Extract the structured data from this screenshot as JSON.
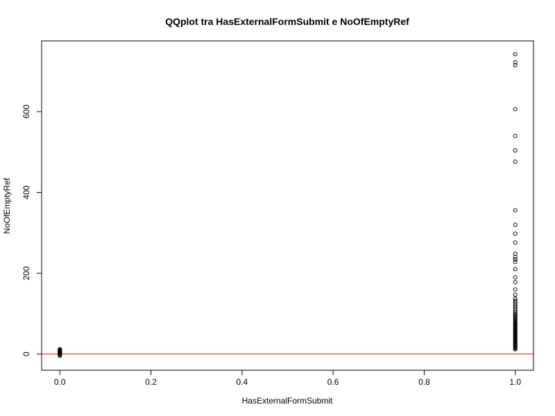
{
  "chart_data": {
    "type": "scatter",
    "title": "QQplot tra HasExternalFormSubmit e NoOfEmptyRef",
    "xlabel": "HasExternalFormSubmit",
    "ylabel": "NoOfEmptyRef",
    "xlim": [
      -0.04,
      1.04
    ],
    "ylim": [
      -40,
      775
    ],
    "xticks": [
      0.0,
      0.2,
      0.4,
      0.6,
      0.8,
      1.0
    ],
    "xtick_labels": [
      "0.0",
      "0.2",
      "0.4",
      "0.6",
      "0.8",
      "1.0"
    ],
    "yticks": [
      0,
      200,
      400,
      600
    ],
    "ytick_labels": [
      "0",
      "200",
      "400",
      "600"
    ],
    "grid": false,
    "reference_line": {
      "type": "horizontal",
      "y": 0,
      "color": "#ff0000"
    },
    "marker": "open-circle",
    "series": [
      {
        "points": [
          {
            "x": 0,
            "y": -4
          },
          {
            "x": 0,
            "y": -2
          },
          {
            "x": 0,
            "y": 0
          },
          {
            "x": 0,
            "y": 1
          },
          {
            "x": 0,
            "y": 2
          },
          {
            "x": 0,
            "y": 3
          },
          {
            "x": 0,
            "y": 4
          },
          {
            "x": 0,
            "y": 5
          },
          {
            "x": 0,
            "y": 6
          },
          {
            "x": 0,
            "y": 7
          },
          {
            "x": 0,
            "y": 8
          },
          {
            "x": 0,
            "y": 9
          },
          {
            "x": 0,
            "y": 10
          },
          {
            "x": 0,
            "y": 11
          },
          {
            "x": 0,
            "y": 12
          },
          {
            "x": 1,
            "y": 12
          },
          {
            "x": 1,
            "y": 14
          },
          {
            "x": 1,
            "y": 16
          },
          {
            "x": 1,
            "y": 18
          },
          {
            "x": 1,
            "y": 20
          },
          {
            "x": 1,
            "y": 22
          },
          {
            "x": 1,
            "y": 24
          },
          {
            "x": 1,
            "y": 26
          },
          {
            "x": 1,
            "y": 28
          },
          {
            "x": 1,
            "y": 30
          },
          {
            "x": 1,
            "y": 32
          },
          {
            "x": 1,
            "y": 34
          },
          {
            "x": 1,
            "y": 36
          },
          {
            "x": 1,
            "y": 38
          },
          {
            "x": 1,
            "y": 40
          },
          {
            "x": 1,
            "y": 42
          },
          {
            "x": 1,
            "y": 44
          },
          {
            "x": 1,
            "y": 46
          },
          {
            "x": 1,
            "y": 48
          },
          {
            "x": 1,
            "y": 50
          },
          {
            "x": 1,
            "y": 52
          },
          {
            "x": 1,
            "y": 54
          },
          {
            "x": 1,
            "y": 56
          },
          {
            "x": 1,
            "y": 58
          },
          {
            "x": 1,
            "y": 60
          },
          {
            "x": 1,
            "y": 62
          },
          {
            "x": 1,
            "y": 64
          },
          {
            "x": 1,
            "y": 66
          },
          {
            "x": 1,
            "y": 68
          },
          {
            "x": 1,
            "y": 70
          },
          {
            "x": 1,
            "y": 72
          },
          {
            "x": 1,
            "y": 74
          },
          {
            "x": 1,
            "y": 76
          },
          {
            "x": 1,
            "y": 78
          },
          {
            "x": 1,
            "y": 80
          },
          {
            "x": 1,
            "y": 82
          },
          {
            "x": 1,
            "y": 85
          },
          {
            "x": 1,
            "y": 88
          },
          {
            "x": 1,
            "y": 91
          },
          {
            "x": 1,
            "y": 94
          },
          {
            "x": 1,
            "y": 97
          },
          {
            "x": 1,
            "y": 100
          },
          {
            "x": 1,
            "y": 104
          },
          {
            "x": 1,
            "y": 108
          },
          {
            "x": 1,
            "y": 112
          },
          {
            "x": 1,
            "y": 116
          },
          {
            "x": 1,
            "y": 120
          },
          {
            "x": 1,
            "y": 124
          },
          {
            "x": 1,
            "y": 128
          },
          {
            "x": 1,
            "y": 132
          },
          {
            "x": 1,
            "y": 137
          },
          {
            "x": 1,
            "y": 147
          },
          {
            "x": 1,
            "y": 160
          },
          {
            "x": 1,
            "y": 178
          },
          {
            "x": 1,
            "y": 190
          },
          {
            "x": 1,
            "y": 210
          },
          {
            "x": 1,
            "y": 228
          },
          {
            "x": 1,
            "y": 234
          },
          {
            "x": 1,
            "y": 240
          },
          {
            "x": 1,
            "y": 248
          },
          {
            "x": 1,
            "y": 276
          },
          {
            "x": 1,
            "y": 298
          },
          {
            "x": 1,
            "y": 320
          },
          {
            "x": 1,
            "y": 356
          },
          {
            "x": 1,
            "y": 476
          },
          {
            "x": 1,
            "y": 504
          },
          {
            "x": 1,
            "y": 540
          },
          {
            "x": 1,
            "y": 606
          },
          {
            "x": 1,
            "y": 715
          },
          {
            "x": 1,
            "y": 722
          },
          {
            "x": 1,
            "y": 742
          }
        ]
      }
    ]
  }
}
